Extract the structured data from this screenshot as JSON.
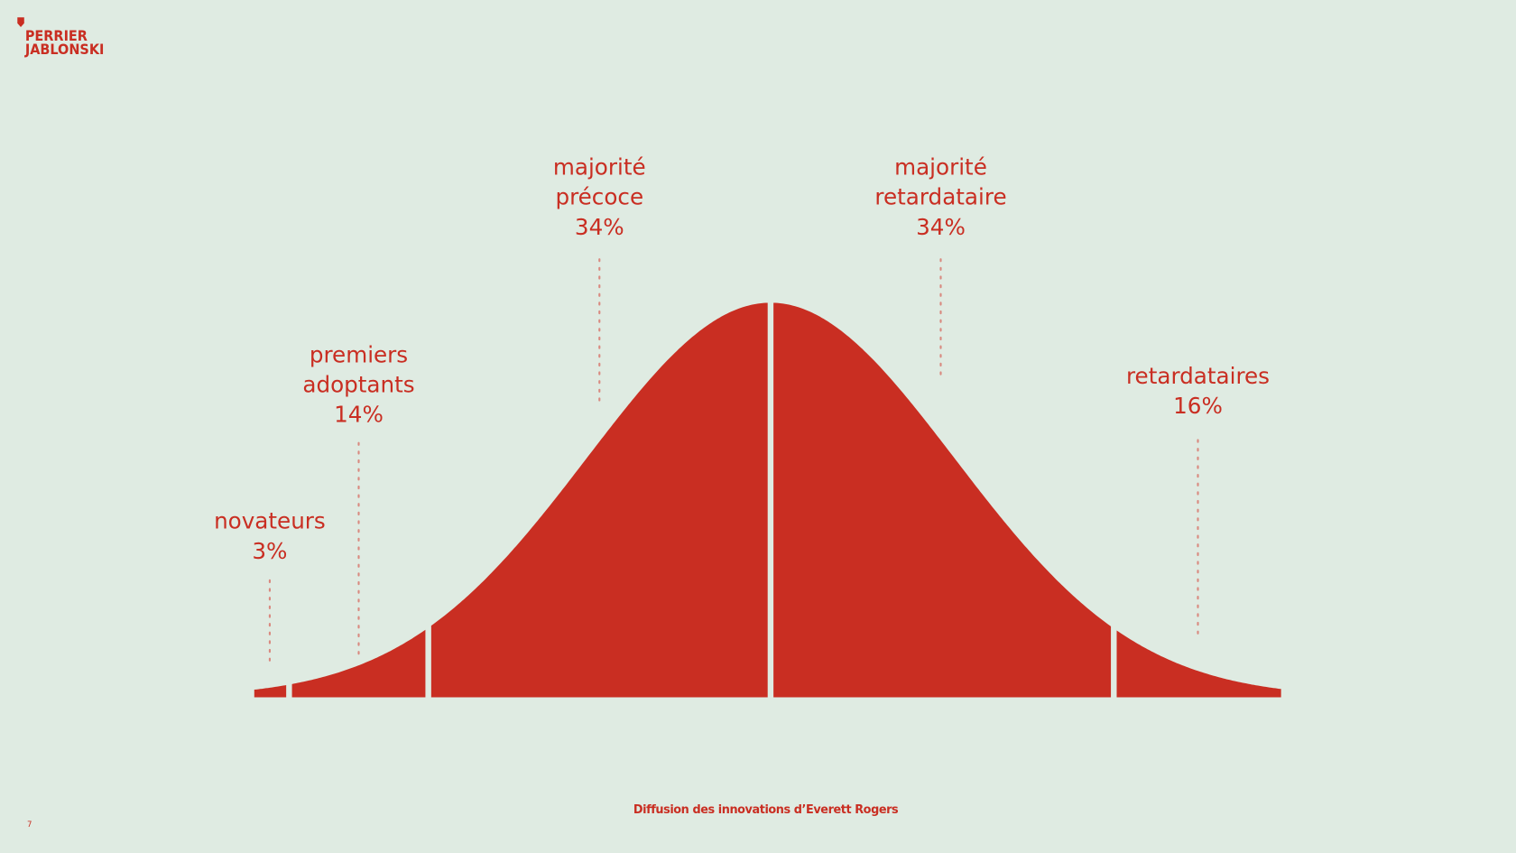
{
  "header": {
    "logo_lines": [
      "PERRIER",
      "JABLONSKI"
    ]
  },
  "segments": [
    {
      "label_lines": [
        "novateurs"
      ],
      "share": "3%"
    },
    {
      "label_lines": [
        "premiers",
        "adoptants"
      ],
      "share": "14%"
    },
    {
      "label_lines": [
        "majorité",
        "précoce"
      ],
      "share": "34%"
    },
    {
      "label_lines": [
        "majorité",
        "retardataire"
      ],
      "share": "34%"
    },
    {
      "label_lines": [
        "retardataires"
      ],
      "share": "16%"
    }
  ],
  "caption": "Diffusion des innovations d’Everett Rogers",
  "page_number": "7"
}
